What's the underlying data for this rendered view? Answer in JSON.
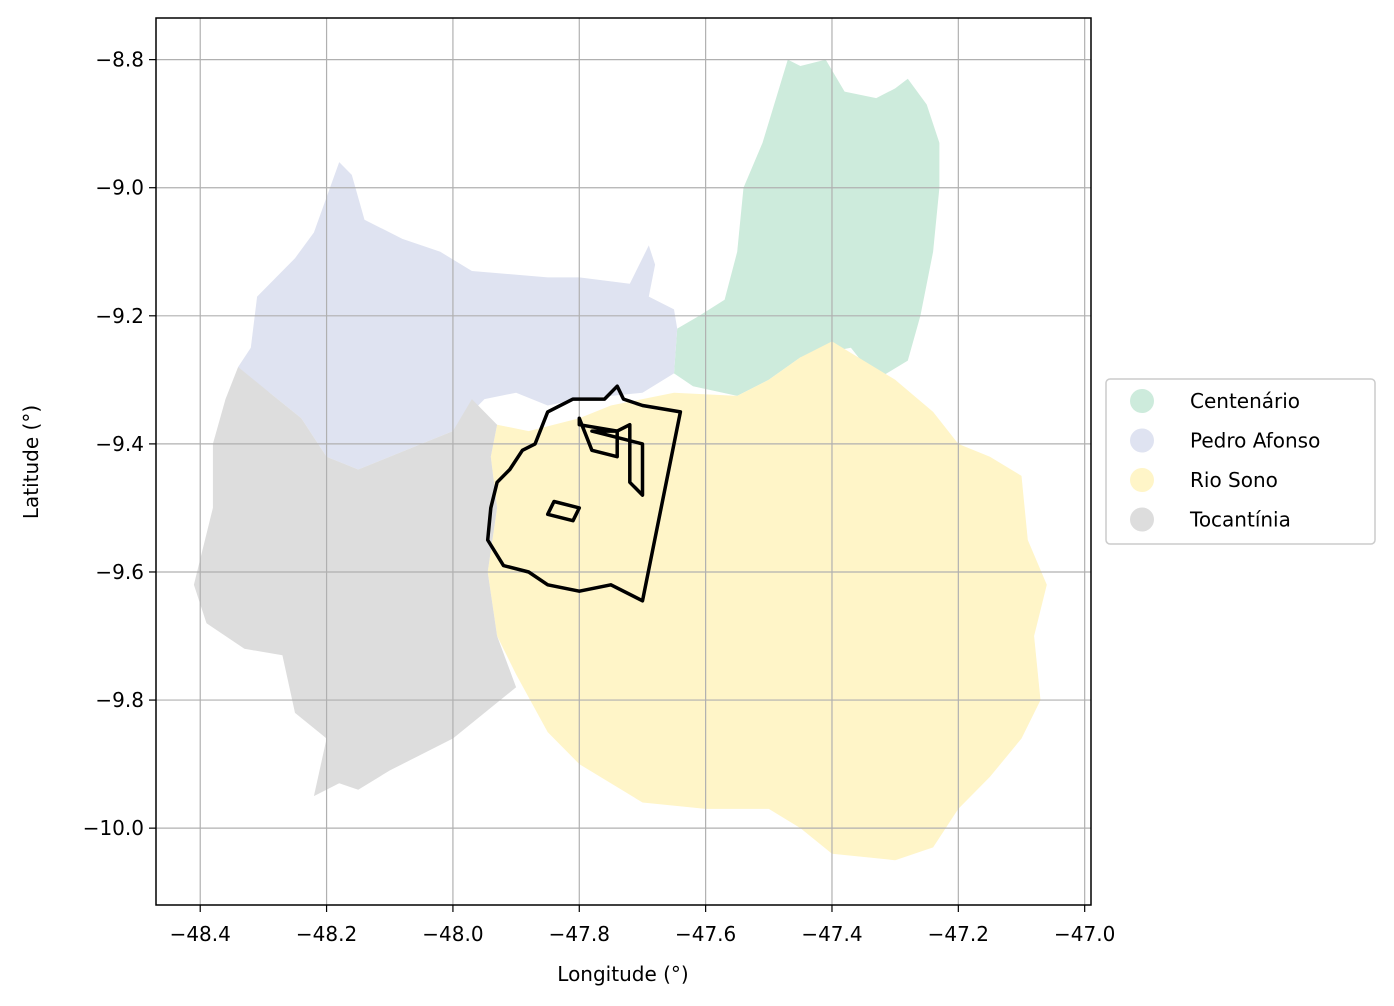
{
  "chart_data": {
    "type": "map",
    "xlabel": "Longitude (°)",
    "ylabel": "Latitude (°)",
    "xlim": [
      -48.47,
      -46.99
    ],
    "ylim": [
      -10.12,
      -8.735
    ],
    "xticks": [
      -48.4,
      -48.2,
      -48.0,
      -47.8,
      -47.6,
      -47.4,
      -47.2,
      -47.0
    ],
    "xtick_labels": [
      "−48.4",
      "−48.2",
      "−48.0",
      "−47.8",
      "−47.6",
      "−47.4",
      "−47.2",
      "−47.0"
    ],
    "yticks": [
      -8.8,
      -9.0,
      -9.2,
      -9.4,
      -9.6,
      -9.8,
      -10.0
    ],
    "ytick_labels": [
      "−8.8",
      "−9.0",
      "−9.2",
      "−9.4",
      "−9.6",
      "−9.8",
      "−10.0"
    ],
    "grid": true,
    "legend_position": "center-right-outside",
    "regions": [
      {
        "name": "Centenário",
        "color": "#cdebdc",
        "polygon": [
          [
            -47.61,
            -9.2
          ],
          [
            -47.57,
            -9.175
          ],
          [
            -47.55,
            -9.1
          ],
          [
            -47.54,
            -9.0
          ],
          [
            -47.51,
            -8.93
          ],
          [
            -47.47,
            -8.8
          ],
          [
            -47.45,
            -8.81
          ],
          [
            -47.41,
            -8.8
          ],
          [
            -47.38,
            -8.85
          ],
          [
            -47.33,
            -8.86
          ],
          [
            -47.3,
            -8.845
          ],
          [
            -47.28,
            -8.83
          ],
          [
            -47.25,
            -8.87
          ],
          [
            -47.23,
            -8.93
          ],
          [
            -47.23,
            -9.0
          ],
          [
            -47.24,
            -9.1
          ],
          [
            -47.26,
            -9.2
          ],
          [
            -47.28,
            -9.27
          ],
          [
            -47.33,
            -9.3
          ],
          [
            -47.37,
            -9.25
          ],
          [
            -47.45,
            -9.265
          ],
          [
            -47.5,
            -9.3
          ],
          [
            -47.55,
            -9.325
          ],
          [
            -47.62,
            -9.31
          ],
          [
            -47.65,
            -9.29
          ],
          [
            -47.645,
            -9.22
          ]
        ]
      },
      {
        "name": "Pedro Afonso",
        "color": "#dfe3f1",
        "polygon": [
          [
            -48.34,
            -9.28
          ],
          [
            -48.32,
            -9.25
          ],
          [
            -48.31,
            -9.17
          ],
          [
            -48.25,
            -9.11
          ],
          [
            -48.22,
            -9.07
          ],
          [
            -48.18,
            -8.96
          ],
          [
            -48.16,
            -8.98
          ],
          [
            -48.14,
            -9.05
          ],
          [
            -48.08,
            -9.08
          ],
          [
            -48.02,
            -9.1
          ],
          [
            -47.97,
            -9.13
          ],
          [
            -47.85,
            -9.14
          ],
          [
            -47.8,
            -9.14
          ],
          [
            -47.72,
            -9.15
          ],
          [
            -47.69,
            -9.09
          ],
          [
            -47.68,
            -9.12
          ],
          [
            -47.69,
            -9.17
          ],
          [
            -47.65,
            -9.19
          ],
          [
            -47.645,
            -9.22
          ],
          [
            -47.65,
            -9.29
          ],
          [
            -47.7,
            -9.32
          ],
          [
            -47.8,
            -9.33
          ],
          [
            -47.85,
            -9.34
          ],
          [
            -47.9,
            -9.32
          ],
          [
            -47.95,
            -9.33
          ],
          [
            -48.0,
            -9.38
          ],
          [
            -48.05,
            -9.4
          ],
          [
            -48.1,
            -9.42
          ],
          [
            -48.15,
            -9.44
          ],
          [
            -48.2,
            -9.42
          ],
          [
            -48.24,
            -9.36
          ],
          [
            -48.29,
            -9.32
          ],
          [
            -48.34,
            -9.3
          ]
        ]
      },
      {
        "name": "Rio Sono",
        "color": "#fff5c8",
        "polygon": [
          [
            -47.93,
            -9.37
          ],
          [
            -47.88,
            -9.38
          ],
          [
            -47.8,
            -9.36
          ],
          [
            -47.75,
            -9.34
          ],
          [
            -47.65,
            -9.32
          ],
          [
            -47.55,
            -9.325
          ],
          [
            -47.5,
            -9.3
          ],
          [
            -47.45,
            -9.265
          ],
          [
            -47.4,
            -9.24
          ],
          [
            -47.35,
            -9.27
          ],
          [
            -47.3,
            -9.3
          ],
          [
            -47.24,
            -9.35
          ],
          [
            -47.2,
            -9.4
          ],
          [
            -47.15,
            -9.42
          ],
          [
            -47.1,
            -9.45
          ],
          [
            -47.09,
            -9.55
          ],
          [
            -47.06,
            -9.62
          ],
          [
            -47.08,
            -9.7
          ],
          [
            -47.07,
            -9.8
          ],
          [
            -47.1,
            -9.86
          ],
          [
            -47.15,
            -9.92
          ],
          [
            -47.2,
            -9.97
          ],
          [
            -47.24,
            -10.03
          ],
          [
            -47.3,
            -10.05
          ],
          [
            -47.4,
            -10.04
          ],
          [
            -47.45,
            -10.0
          ],
          [
            -47.5,
            -9.97
          ],
          [
            -47.6,
            -9.97
          ],
          [
            -47.7,
            -9.96
          ],
          [
            -47.8,
            -9.9
          ],
          [
            -47.85,
            -9.85
          ],
          [
            -47.9,
            -9.76
          ],
          [
            -47.93,
            -9.7
          ],
          [
            -47.945,
            -9.6
          ],
          [
            -47.93,
            -9.5
          ],
          [
            -47.94,
            -9.42
          ]
        ]
      },
      {
        "name": "Tocantínia",
        "color": "#dddddd",
        "polygon": [
          [
            -48.34,
            -9.28
          ],
          [
            -48.36,
            -9.33
          ],
          [
            -48.38,
            -9.4
          ],
          [
            -48.38,
            -9.5
          ],
          [
            -48.4,
            -9.58
          ],
          [
            -48.41,
            -9.62
          ],
          [
            -48.39,
            -9.68
          ],
          [
            -48.33,
            -9.72
          ],
          [
            -48.27,
            -9.73
          ],
          [
            -48.25,
            -9.82
          ],
          [
            -48.2,
            -9.86
          ],
          [
            -48.22,
            -9.95
          ],
          [
            -48.18,
            -9.93
          ],
          [
            -48.15,
            -9.94
          ],
          [
            -48.1,
            -9.91
          ],
          [
            -48.0,
            -9.86
          ],
          [
            -47.9,
            -9.78
          ],
          [
            -47.93,
            -9.7
          ],
          [
            -47.945,
            -9.6
          ],
          [
            -47.93,
            -9.5
          ],
          [
            -47.94,
            -9.42
          ],
          [
            -47.93,
            -9.37
          ],
          [
            -47.97,
            -9.33
          ],
          [
            -48.0,
            -9.38
          ],
          [
            -48.05,
            -9.4
          ],
          [
            -48.1,
            -9.42
          ],
          [
            -48.15,
            -9.44
          ],
          [
            -48.2,
            -9.42
          ],
          [
            -48.24,
            -9.36
          ],
          [
            -48.29,
            -9.32
          ]
        ]
      }
    ],
    "outline": {
      "color": "#000000",
      "rings": [
        [
          [
            -47.81,
            -9.33
          ],
          [
            -47.85,
            -9.35
          ],
          [
            -47.87,
            -9.4
          ],
          [
            -47.89,
            -9.41
          ],
          [
            -47.91,
            -9.44
          ],
          [
            -47.93,
            -9.46
          ],
          [
            -47.94,
            -9.5
          ],
          [
            -47.945,
            -9.55
          ],
          [
            -47.92,
            -9.59
          ],
          [
            -47.88,
            -9.6
          ],
          [
            -47.85,
            -9.62
          ],
          [
            -47.8,
            -9.63
          ],
          [
            -47.75,
            -9.62
          ],
          [
            -47.7,
            -9.645
          ],
          [
            -47.64,
            -9.35
          ],
          [
            -47.7,
            -9.34
          ],
          [
            -47.73,
            -9.33
          ],
          [
            -47.74,
            -9.31
          ],
          [
            -47.76,
            -9.33
          ]
        ],
        [
          [
            -47.8,
            -9.36
          ],
          [
            -47.78,
            -9.41
          ],
          [
            -47.74,
            -9.42
          ],
          [
            -47.74,
            -9.38
          ],
          [
            -47.8,
            -9.37
          ]
        ],
        [
          [
            -47.78,
            -9.38
          ],
          [
            -47.74,
            -9.38
          ],
          [
            -47.72,
            -9.37
          ],
          [
            -47.72,
            -9.46
          ],
          [
            -47.7,
            -9.48
          ],
          [
            -47.7,
            -9.4
          ]
        ],
        [
          [
            -47.84,
            -9.49
          ],
          [
            -47.8,
            -9.5
          ],
          [
            -47.81,
            -9.52
          ],
          [
            -47.85,
            -9.51
          ]
        ]
      ]
    }
  },
  "legend": {
    "items": [
      {
        "label": "Centenário",
        "color": "#cdebdc"
      },
      {
        "label": "Pedro Afonso",
        "color": "#dfe3f1"
      },
      {
        "label": "Rio Sono",
        "color": "#fff5c8"
      },
      {
        "label": "Tocantínia",
        "color": "#dddddd"
      }
    ]
  }
}
